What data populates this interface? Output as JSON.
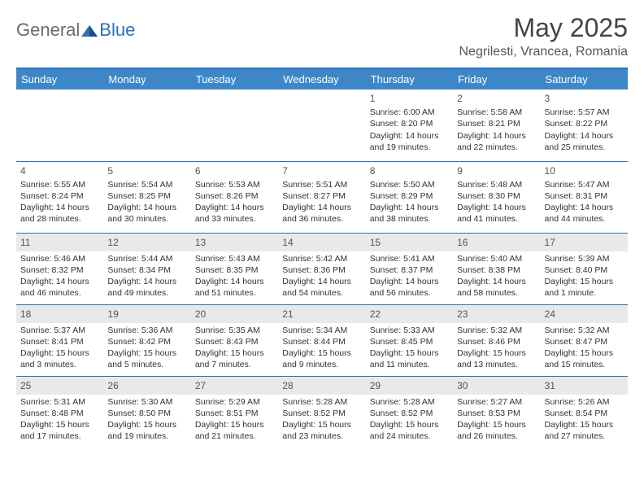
{
  "logo": {
    "general": "General",
    "blue": "Blue"
  },
  "title": "May 2025",
  "location": "Negrilesti, Vrancea, Romania",
  "colors": {
    "header_bg": "#3d87c9",
    "header_border": "#2d6fb8",
    "text": "#333333",
    "logo_gray": "#6a6a6a",
    "logo_blue": "#2d6fb8",
    "shade": "#e9e9e9"
  },
  "weekdays": [
    "Sunday",
    "Monday",
    "Tuesday",
    "Wednesday",
    "Thursday",
    "Friday",
    "Saturday"
  ],
  "weeks": [
    [
      null,
      null,
      null,
      null,
      {
        "day": "1",
        "sunrise": "6:00 AM",
        "sunset": "8:20 PM",
        "daylight": "14 hours and 19 minutes."
      },
      {
        "day": "2",
        "sunrise": "5:58 AM",
        "sunset": "8:21 PM",
        "daylight": "14 hours and 22 minutes."
      },
      {
        "day": "3",
        "sunrise": "5:57 AM",
        "sunset": "8:22 PM",
        "daylight": "14 hours and 25 minutes."
      }
    ],
    [
      {
        "day": "4",
        "sunrise": "5:55 AM",
        "sunset": "8:24 PM",
        "daylight": "14 hours and 28 minutes."
      },
      {
        "day": "5",
        "sunrise": "5:54 AM",
        "sunset": "8:25 PM",
        "daylight": "14 hours and 30 minutes."
      },
      {
        "day": "6",
        "sunrise": "5:53 AM",
        "sunset": "8:26 PM",
        "daylight": "14 hours and 33 minutes."
      },
      {
        "day": "7",
        "sunrise": "5:51 AM",
        "sunset": "8:27 PM",
        "daylight": "14 hours and 36 minutes."
      },
      {
        "day": "8",
        "sunrise": "5:50 AM",
        "sunset": "8:29 PM",
        "daylight": "14 hours and 38 minutes."
      },
      {
        "day": "9",
        "sunrise": "5:48 AM",
        "sunset": "8:30 PM",
        "daylight": "14 hours and 41 minutes."
      },
      {
        "day": "10",
        "sunrise": "5:47 AM",
        "sunset": "8:31 PM",
        "daylight": "14 hours and 44 minutes."
      }
    ],
    [
      {
        "day": "11",
        "sunrise": "5:46 AM",
        "sunset": "8:32 PM",
        "daylight": "14 hours and 46 minutes."
      },
      {
        "day": "12",
        "sunrise": "5:44 AM",
        "sunset": "8:34 PM",
        "daylight": "14 hours and 49 minutes."
      },
      {
        "day": "13",
        "sunrise": "5:43 AM",
        "sunset": "8:35 PM",
        "daylight": "14 hours and 51 minutes."
      },
      {
        "day": "14",
        "sunrise": "5:42 AM",
        "sunset": "8:36 PM",
        "daylight": "14 hours and 54 minutes."
      },
      {
        "day": "15",
        "sunrise": "5:41 AM",
        "sunset": "8:37 PM",
        "daylight": "14 hours and 56 minutes."
      },
      {
        "day": "16",
        "sunrise": "5:40 AM",
        "sunset": "8:38 PM",
        "daylight": "14 hours and 58 minutes."
      },
      {
        "day": "17",
        "sunrise": "5:39 AM",
        "sunset": "8:40 PM",
        "daylight": "15 hours and 1 minute."
      }
    ],
    [
      {
        "day": "18",
        "sunrise": "5:37 AM",
        "sunset": "8:41 PM",
        "daylight": "15 hours and 3 minutes."
      },
      {
        "day": "19",
        "sunrise": "5:36 AM",
        "sunset": "8:42 PM",
        "daylight": "15 hours and 5 minutes."
      },
      {
        "day": "20",
        "sunrise": "5:35 AM",
        "sunset": "8:43 PM",
        "daylight": "15 hours and 7 minutes."
      },
      {
        "day": "21",
        "sunrise": "5:34 AM",
        "sunset": "8:44 PM",
        "daylight": "15 hours and 9 minutes."
      },
      {
        "day": "22",
        "sunrise": "5:33 AM",
        "sunset": "8:45 PM",
        "daylight": "15 hours and 11 minutes."
      },
      {
        "day": "23",
        "sunrise": "5:32 AM",
        "sunset": "8:46 PM",
        "daylight": "15 hours and 13 minutes."
      },
      {
        "day": "24",
        "sunrise": "5:32 AM",
        "sunset": "8:47 PM",
        "daylight": "15 hours and 15 minutes."
      }
    ],
    [
      {
        "day": "25",
        "sunrise": "5:31 AM",
        "sunset": "8:48 PM",
        "daylight": "15 hours and 17 minutes."
      },
      {
        "day": "26",
        "sunrise": "5:30 AM",
        "sunset": "8:50 PM",
        "daylight": "15 hours and 19 minutes."
      },
      {
        "day": "27",
        "sunrise": "5:29 AM",
        "sunset": "8:51 PM",
        "daylight": "15 hours and 21 minutes."
      },
      {
        "day": "28",
        "sunrise": "5:28 AM",
        "sunset": "8:52 PM",
        "daylight": "15 hours and 23 minutes."
      },
      {
        "day": "29",
        "sunrise": "5:28 AM",
        "sunset": "8:52 PM",
        "daylight": "15 hours and 24 minutes."
      },
      {
        "day": "30",
        "sunrise": "5:27 AM",
        "sunset": "8:53 PM",
        "daylight": "15 hours and 26 minutes."
      },
      {
        "day": "31",
        "sunrise": "5:26 AM",
        "sunset": "8:54 PM",
        "daylight": "15 hours and 27 minutes."
      }
    ]
  ],
  "labels": {
    "sunrise": "Sunrise: ",
    "sunset": "Sunset: ",
    "daylight": "Daylight: "
  },
  "shaded_rows": [
    2,
    3,
    4
  ]
}
